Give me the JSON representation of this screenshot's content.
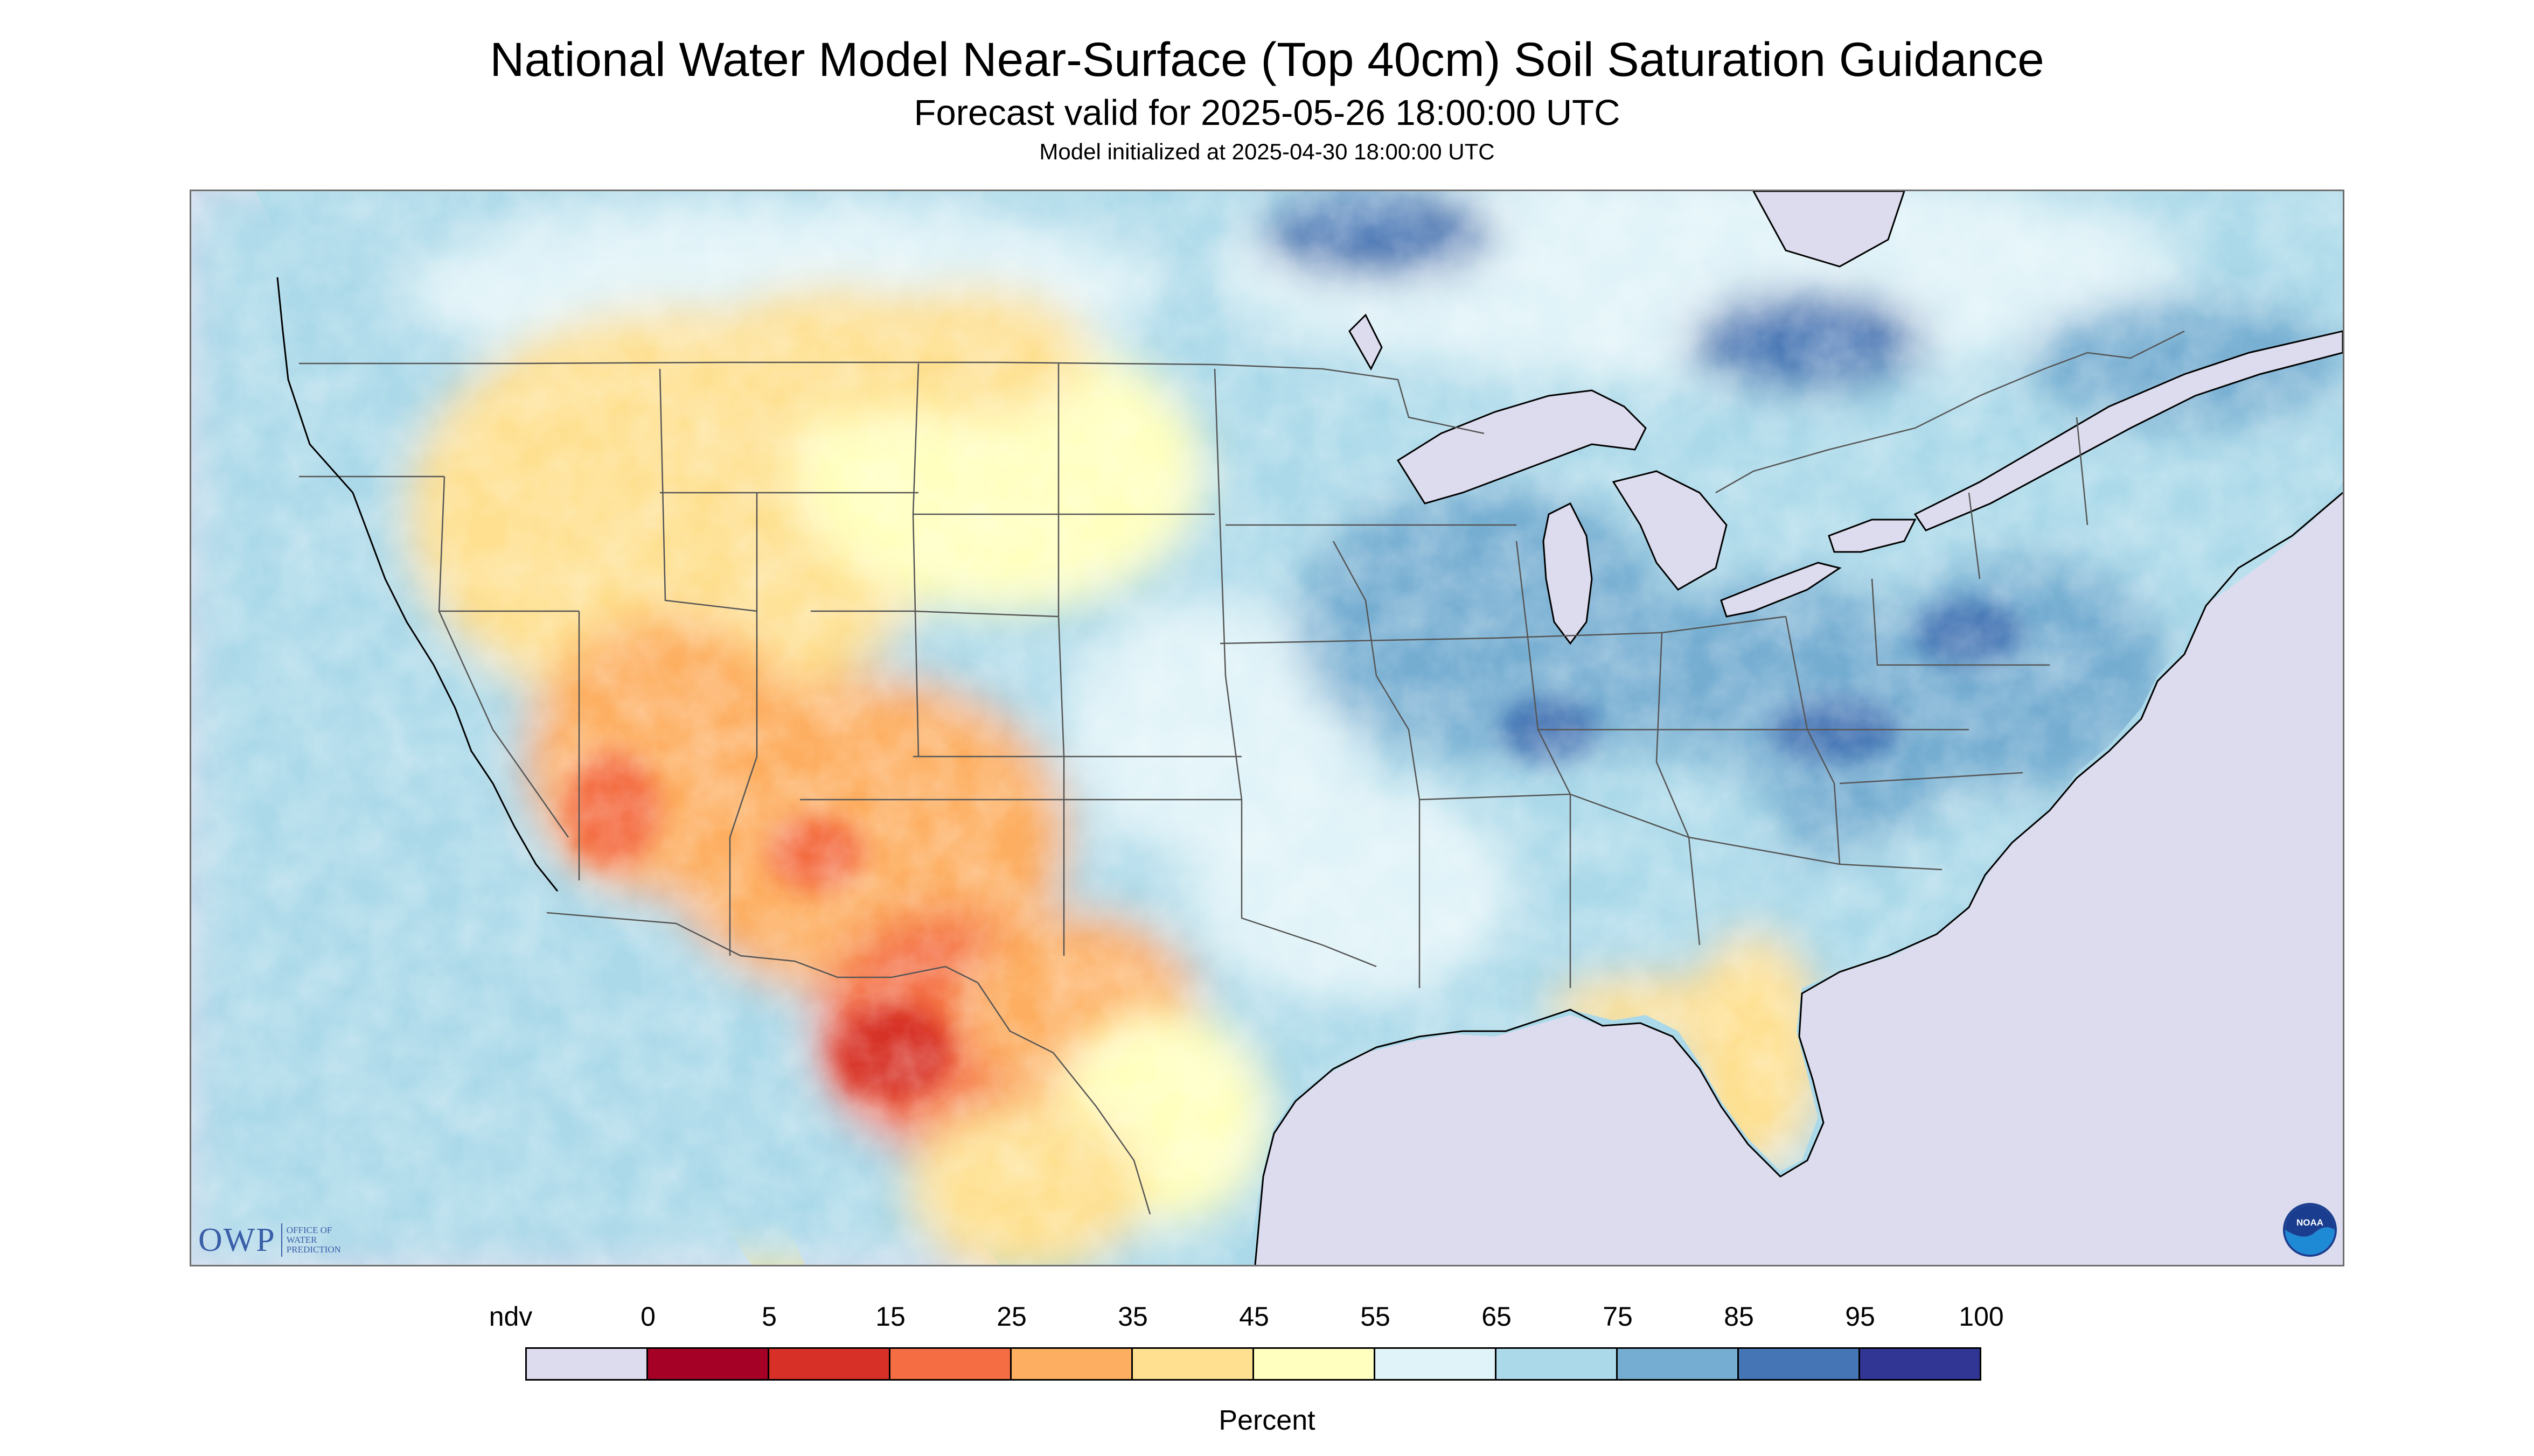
{
  "title": "National Water Model Near-Surface (Top 40cm) Soil Saturation Guidance",
  "subtitle": "Forecast valid for 2025-05-26 18:00:00 UTC",
  "init_line": "Model initialized at 2025-04-30 18:00:00 UTC",
  "owp_logo": {
    "letters": "OWP",
    "line1": "OFFICE OF",
    "line2": "WATER",
    "line3": "PREDICTION"
  },
  "noaa_logo": {
    "text": "NOAA",
    "icon": "noaa-logo-icon"
  },
  "legend": {
    "unit": "Percent",
    "labels": [
      "ndv",
      "0",
      "5",
      "15",
      "25",
      "35",
      "45",
      "55",
      "65",
      "75",
      "85",
      "95",
      "100"
    ],
    "colors": [
      "#dcdcee",
      "#a50026",
      "#d73027",
      "#f46d43",
      "#fdae61",
      "#fee090",
      "#ffffbf",
      "#e0f3f8",
      "#abd9e9",
      "#74add1",
      "#4575b4",
      "#313695"
    ]
  },
  "map_colors": {
    "ndv": "#dcdcee",
    "water": "#dcdcee",
    "moist_canada": "#abd9e9",
    "wet": "#74add1",
    "border": "#555555",
    "coast": "#000000"
  }
}
